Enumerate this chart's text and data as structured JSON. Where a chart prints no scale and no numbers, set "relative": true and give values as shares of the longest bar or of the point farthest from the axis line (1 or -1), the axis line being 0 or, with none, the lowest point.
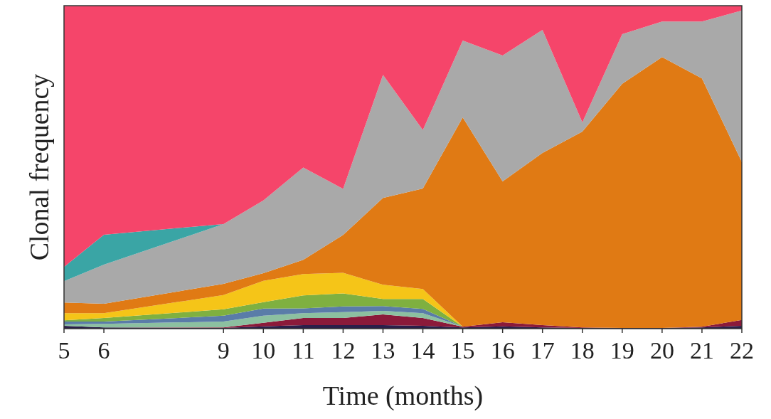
{
  "chart_data": {
    "type": "area",
    "stacked": true,
    "relative": true,
    "xlabel": "Time (months)",
    "ylabel": "Clonal frequency",
    "x": [
      5,
      6,
      9,
      10,
      11,
      12,
      13,
      14,
      15,
      16,
      17,
      18,
      19,
      20,
      21,
      22
    ],
    "xlim": [
      5,
      22
    ],
    "xticks": [
      5,
      6,
      9,
      10,
      11,
      12,
      13,
      14,
      15,
      16,
      17,
      18,
      19,
      20,
      21,
      22
    ],
    "series": [
      {
        "color": "#2b1f4a",
        "values": [
          0.009,
          0.004,
          0.002,
          0.007,
          0.011,
          0.011,
          0.011,
          0.009,
          0.004,
          0.007,
          0.004,
          0.002,
          0.002,
          0.002,
          0.004,
          0.009
        ]
      },
      {
        "color": "#8b1a3a",
        "values": [
          0,
          0,
          0.002,
          0.011,
          0.022,
          0.022,
          0.033,
          0.024,
          0.002,
          0.013,
          0.007,
          0.002,
          0,
          0,
          0.002,
          0.018
        ]
      },
      {
        "color": "#8cc0a0",
        "values": [
          0.004,
          0.011,
          0.018,
          0.022,
          0.015,
          0.018,
          0.011,
          0.015,
          0,
          0,
          0,
          0,
          0,
          0,
          0,
          0
        ]
      },
      {
        "color": "#5a7ca8",
        "values": [
          0.009,
          0.007,
          0.018,
          0.022,
          0.015,
          0.018,
          0.015,
          0.013,
          0,
          0,
          0,
          0,
          0,
          0,
          0,
          0
        ]
      },
      {
        "color": "#7fb040",
        "values": [
          0.004,
          0.011,
          0.02,
          0.02,
          0.04,
          0.04,
          0.022,
          0.031,
          0,
          0,
          0,
          0,
          0,
          0,
          0,
          0
        ]
      },
      {
        "color": "#f5c518",
        "values": [
          0.022,
          0.015,
          0.044,
          0.066,
          0.066,
          0.064,
          0.044,
          0.031,
          0,
          0,
          0,
          0,
          0,
          0,
          0,
          0
        ]
      },
      {
        "color": "#e07a14",
        "values": [
          0.033,
          0.029,
          0.035,
          0.024,
          0.044,
          0.117,
          0.269,
          0.311,
          0.648,
          0.436,
          0.533,
          0.606,
          0.756,
          0.839,
          0.769,
          0.489
        ]
      },
      {
        "color": "#a9a9a9",
        "values": [
          0.066,
          0.121,
          0.185,
          0.225,
          0.286,
          0.143,
          0.381,
          0.181,
          0.238,
          0.39,
          0.381,
          0.029,
          0.154,
          0.11,
          0.176,
          0.469
        ]
      },
      {
        "color": "#3aa5a5",
        "values": [
          0.044,
          0.093,
          0,
          0,
          0,
          0,
          0,
          0,
          0,
          0,
          0,
          0,
          0,
          0,
          0,
          0
        ]
      },
      {
        "color": "#f5456a",
        "values": [
          0.808,
          0.709,
          0.676,
          0.603,
          0.5,
          0.567,
          0.214,
          0.385,
          0.108,
          0.154,
          0.075,
          0.361,
          0.088,
          0.048,
          0.048,
          0.015
        ]
      }
    ]
  }
}
